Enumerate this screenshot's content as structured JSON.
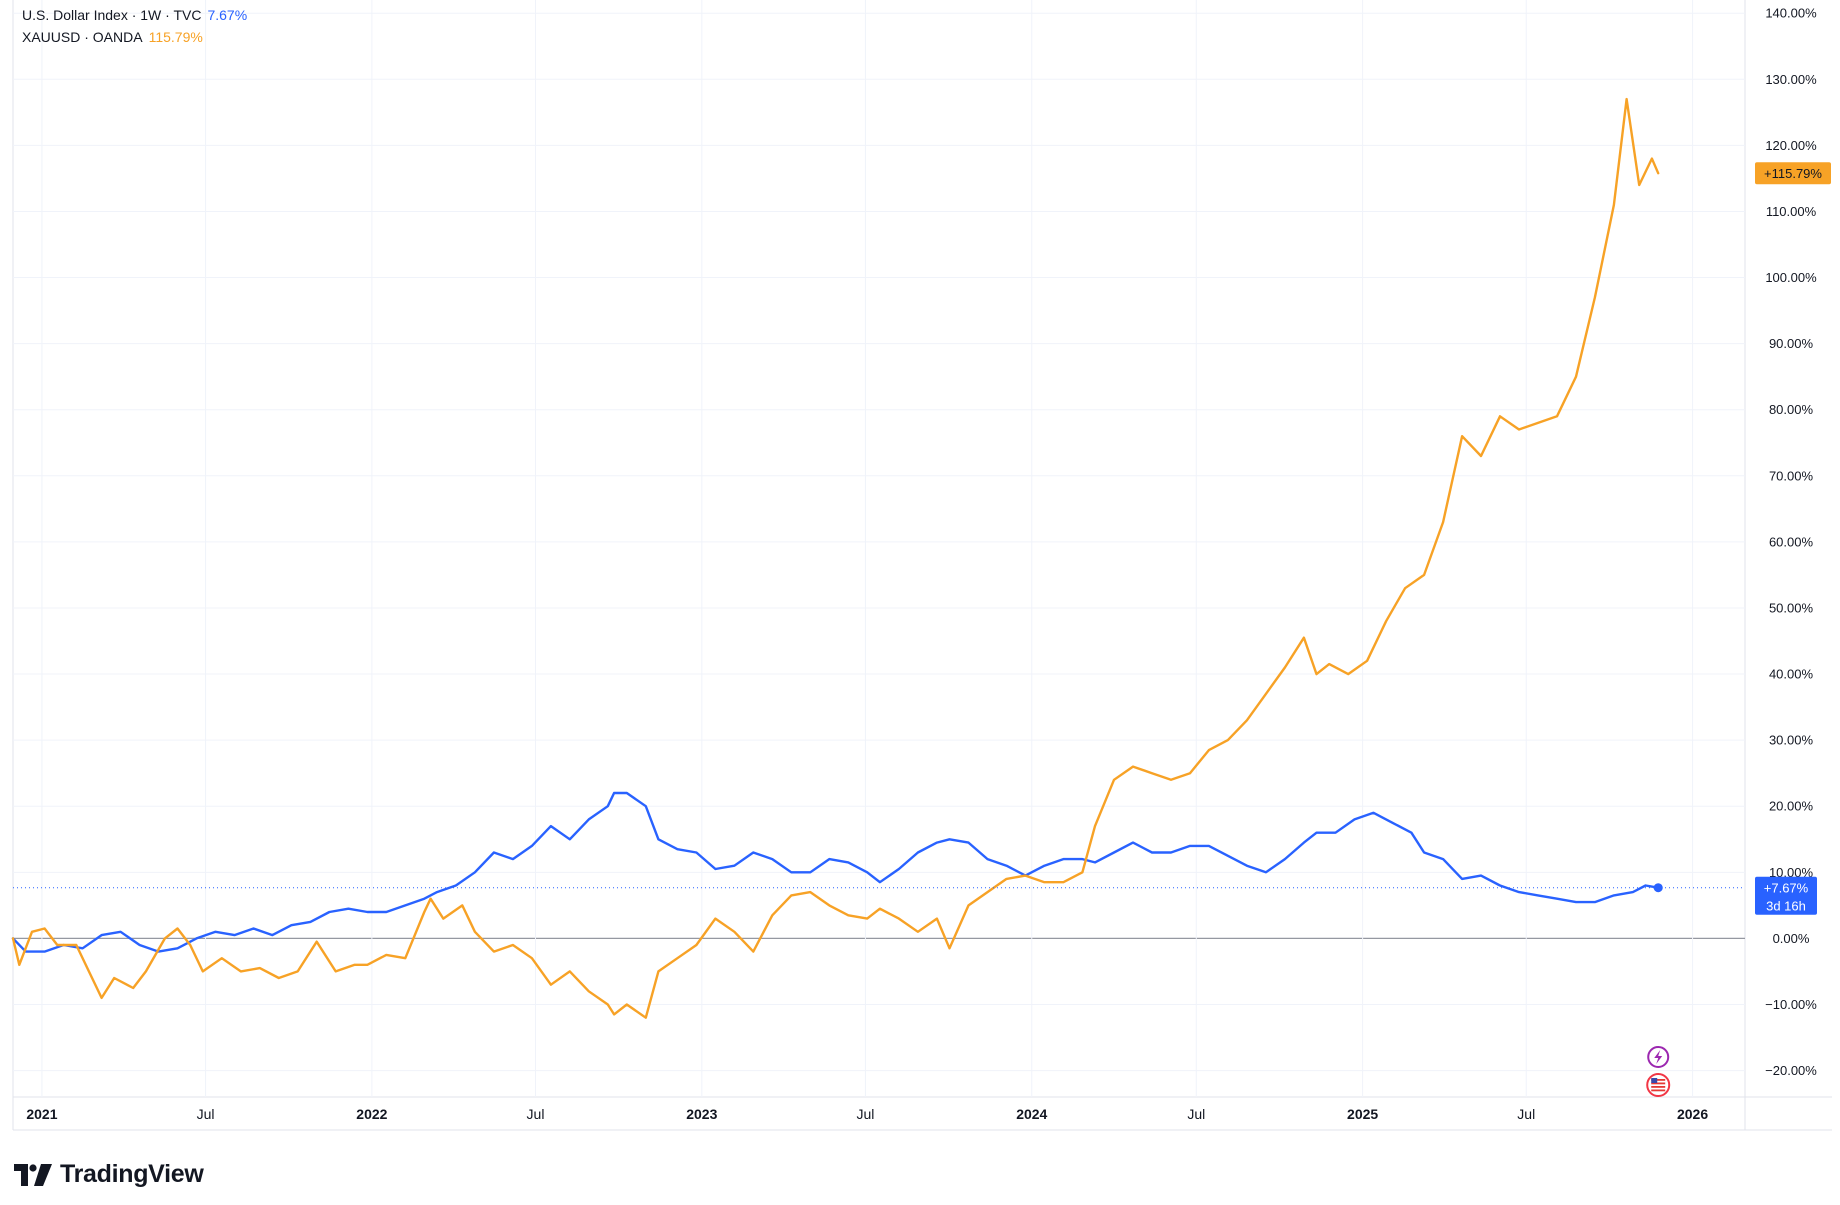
{
  "legend": {
    "dxy_name": "U.S. Dollar Index · 1W · TVC",
    "dxy_value": "7.67%",
    "gold_name": "XAUUSD · OANDA",
    "gold_value": "115.79%"
  },
  "price_labels": {
    "gold": "+115.79%",
    "dxy": "+7.67%",
    "dxy_countdown": "3d 16h"
  },
  "brand": {
    "name": "TradingView"
  },
  "colors": {
    "dxy": "#2962ff",
    "gold": "#f7a226",
    "dxy_text": "#2962ff",
    "gold_text": "#f7a226"
  },
  "chart_data": {
    "type": "line",
    "y_unit": "%",
    "ylim": [
      -24,
      142
    ],
    "y_ticks": [
      140,
      130,
      120,
      110,
      100,
      90,
      80,
      70,
      60,
      50,
      40,
      30,
      20,
      10,
      0,
      -10,
      -20
    ],
    "y_tick_labels": [
      "140.00%",
      "130.00%",
      "120.00%",
      "110.00%",
      "100.00%",
      "90.00%",
      "80.00%",
      "70.00%",
      "60.00%",
      "50.00%",
      "40.00%",
      "30.00%",
      "20.00%",
      "10.00%",
      "0.00%",
      "−10.00%",
      "−20.00%"
    ],
    "xlim": [
      "2020-11-30",
      "2026-02-28"
    ],
    "x_ticks": [
      {
        "date": "2021-01-01",
        "label": "2021",
        "bold": true
      },
      {
        "date": "2021-07-01",
        "label": "Jul",
        "bold": false
      },
      {
        "date": "2022-01-01",
        "label": "2022",
        "bold": true
      },
      {
        "date": "2022-07-01",
        "label": "Jul",
        "bold": false
      },
      {
        "date": "2023-01-01",
        "label": "2023",
        "bold": true
      },
      {
        "date": "2023-07-01",
        "label": "Jul",
        "bold": false
      },
      {
        "date": "2024-01-01",
        "label": "2024",
        "bold": true
      },
      {
        "date": "2024-07-01",
        "label": "Jul",
        "bold": false
      },
      {
        "date": "2025-01-01",
        "label": "2025",
        "bold": true
      },
      {
        "date": "2025-07-01",
        "label": "Jul",
        "bold": false
      },
      {
        "date": "2026-01-01",
        "label": "2026",
        "bold": true
      }
    ],
    "series": [
      {
        "name": "U.S. Dollar Index · 1W · TVC",
        "color": "#2962ff",
        "last_value": 7.67,
        "points": [
          [
            "2020-11-30",
            0
          ],
          [
            "2020-12-14",
            -2
          ],
          [
            "2021-01-04",
            -2
          ],
          [
            "2021-01-25",
            -1
          ],
          [
            "2021-02-15",
            -1.5
          ],
          [
            "2021-03-08",
            0.5
          ],
          [
            "2021-03-29",
            1
          ],
          [
            "2021-04-19",
            -1
          ],
          [
            "2021-05-10",
            -2
          ],
          [
            "2021-05-31",
            -1.5
          ],
          [
            "2021-06-21",
            0
          ],
          [
            "2021-07-12",
            1
          ],
          [
            "2021-08-02",
            0.5
          ],
          [
            "2021-08-23",
            1.5
          ],
          [
            "2021-09-13",
            0.5
          ],
          [
            "2021-10-04",
            2
          ],
          [
            "2021-10-25",
            2.5
          ],
          [
            "2021-11-15",
            4
          ],
          [
            "2021-12-06",
            4.5
          ],
          [
            "2021-12-27",
            4
          ],
          [
            "2022-01-17",
            4
          ],
          [
            "2022-02-07",
            5
          ],
          [
            "2022-02-28",
            6
          ],
          [
            "2022-03-14",
            7
          ],
          [
            "2022-04-04",
            8
          ],
          [
            "2022-04-25",
            10
          ],
          [
            "2022-05-16",
            13
          ],
          [
            "2022-06-06",
            12
          ],
          [
            "2022-06-27",
            14
          ],
          [
            "2022-07-18",
            17
          ],
          [
            "2022-08-08",
            15
          ],
          [
            "2022-08-29",
            18
          ],
          [
            "2022-09-19",
            20
          ],
          [
            "2022-09-26",
            22
          ],
          [
            "2022-10-10",
            22
          ],
          [
            "2022-10-31",
            20
          ],
          [
            "2022-11-14",
            15
          ],
          [
            "2022-12-05",
            13.5
          ],
          [
            "2022-12-26",
            13
          ],
          [
            "2023-01-16",
            10.5
          ],
          [
            "2023-02-06",
            11
          ],
          [
            "2023-02-27",
            13
          ],
          [
            "2023-03-20",
            12
          ],
          [
            "2023-04-10",
            10
          ],
          [
            "2023-05-01",
            10
          ],
          [
            "2023-05-22",
            12
          ],
          [
            "2023-06-12",
            11.5
          ],
          [
            "2023-07-03",
            10
          ],
          [
            "2023-07-17",
            8.5
          ],
          [
            "2023-08-07",
            10.5
          ],
          [
            "2023-08-28",
            13
          ],
          [
            "2023-09-18",
            14.5
          ],
          [
            "2023-10-02",
            15
          ],
          [
            "2023-10-23",
            14.5
          ],
          [
            "2023-11-13",
            12
          ],
          [
            "2023-12-04",
            11
          ],
          [
            "2023-12-25",
            9.5
          ],
          [
            "2024-01-15",
            11
          ],
          [
            "2024-02-05",
            12
          ],
          [
            "2024-02-26",
            12
          ],
          [
            "2024-03-11",
            11.5
          ],
          [
            "2024-04-01",
            13
          ],
          [
            "2024-04-22",
            14.5
          ],
          [
            "2024-05-13",
            13
          ],
          [
            "2024-06-03",
            13
          ],
          [
            "2024-06-24",
            14
          ],
          [
            "2024-07-15",
            14
          ],
          [
            "2024-08-05",
            12.5
          ],
          [
            "2024-08-26",
            11
          ],
          [
            "2024-09-16",
            10
          ],
          [
            "2024-10-07",
            12
          ],
          [
            "2024-10-28",
            14.5
          ],
          [
            "2024-11-11",
            16
          ],
          [
            "2024-12-02",
            16
          ],
          [
            "2024-12-23",
            18
          ],
          [
            "2025-01-13",
            19
          ],
          [
            "2025-02-03",
            17.5
          ],
          [
            "2025-02-24",
            16
          ],
          [
            "2025-03-10",
            13
          ],
          [
            "2025-03-31",
            12
          ],
          [
            "2025-04-21",
            9
          ],
          [
            "2025-05-12",
            9.5
          ],
          [
            "2025-06-02",
            8
          ],
          [
            "2025-06-23",
            7
          ],
          [
            "2025-07-14",
            6.5
          ],
          [
            "2025-08-04",
            6
          ],
          [
            "2025-08-25",
            5.5
          ],
          [
            "2025-09-15",
            5.5
          ],
          [
            "2025-10-06",
            6.5
          ],
          [
            "2025-10-27",
            7
          ],
          [
            "2025-11-10",
            8
          ],
          [
            "2025-11-24",
            7.67
          ]
        ]
      },
      {
        "name": "XAUUSD · OANDA",
        "color": "#f7a226",
        "last_value": 115.79,
        "points": [
          [
            "2020-11-30",
            0
          ],
          [
            "2020-12-07",
            -4
          ],
          [
            "2020-12-21",
            1
          ],
          [
            "2021-01-04",
            1.5
          ],
          [
            "2021-01-18",
            -1
          ],
          [
            "2021-02-08",
            -1
          ],
          [
            "2021-02-22",
            -5
          ],
          [
            "2021-03-08",
            -9
          ],
          [
            "2021-03-22",
            -6
          ],
          [
            "2021-04-12",
            -7.5
          ],
          [
            "2021-04-26",
            -5
          ],
          [
            "2021-05-17",
            0
          ],
          [
            "2021-05-31",
            1.5
          ],
          [
            "2021-06-14",
            -1
          ],
          [
            "2021-06-28",
            -5
          ],
          [
            "2021-07-19",
            -3
          ],
          [
            "2021-08-09",
            -5
          ],
          [
            "2021-08-30",
            -4.5
          ],
          [
            "2021-09-20",
            -6
          ],
          [
            "2021-10-11",
            -5
          ],
          [
            "2021-11-01",
            -0.5
          ],
          [
            "2021-11-22",
            -5
          ],
          [
            "2021-12-13",
            -4
          ],
          [
            "2021-12-27",
            -4
          ],
          [
            "2022-01-17",
            -2.5
          ],
          [
            "2022-02-07",
            -3
          ],
          [
            "2022-02-28",
            4
          ],
          [
            "2022-03-07",
            6
          ],
          [
            "2022-03-21",
            3
          ],
          [
            "2022-04-11",
            5
          ],
          [
            "2022-04-25",
            1
          ],
          [
            "2022-05-16",
            -2
          ],
          [
            "2022-06-06",
            -1
          ],
          [
            "2022-06-27",
            -3
          ],
          [
            "2022-07-18",
            -7
          ],
          [
            "2022-08-08",
            -5
          ],
          [
            "2022-08-29",
            -8
          ],
          [
            "2022-09-19",
            -10
          ],
          [
            "2022-09-26",
            -11.5
          ],
          [
            "2022-10-10",
            -10
          ],
          [
            "2022-10-31",
            -12
          ],
          [
            "2022-11-14",
            -5
          ],
          [
            "2022-12-05",
            -3
          ],
          [
            "2022-12-26",
            -1
          ],
          [
            "2023-01-16",
            3
          ],
          [
            "2023-02-06",
            1
          ],
          [
            "2023-02-27",
            -2
          ],
          [
            "2023-03-20",
            3.5
          ],
          [
            "2023-04-10",
            6.5
          ],
          [
            "2023-05-01",
            7
          ],
          [
            "2023-05-22",
            5
          ],
          [
            "2023-06-12",
            3.5
          ],
          [
            "2023-07-03",
            3
          ],
          [
            "2023-07-17",
            4.5
          ],
          [
            "2023-08-07",
            3
          ],
          [
            "2023-08-28",
            1
          ],
          [
            "2023-09-18",
            3
          ],
          [
            "2023-10-02",
            -1.5
          ],
          [
            "2023-10-23",
            5
          ],
          [
            "2023-11-13",
            7
          ],
          [
            "2023-12-04",
            9
          ],
          [
            "2023-12-25",
            9.5
          ],
          [
            "2024-01-15",
            8.5
          ],
          [
            "2024-02-05",
            8.5
          ],
          [
            "2024-02-26",
            10
          ],
          [
            "2024-03-11",
            17
          ],
          [
            "2024-04-01",
            24
          ],
          [
            "2024-04-22",
            26
          ],
          [
            "2024-05-13",
            25
          ],
          [
            "2024-06-03",
            24
          ],
          [
            "2024-06-24",
            25
          ],
          [
            "2024-07-15",
            28.5
          ],
          [
            "2024-08-05",
            30
          ],
          [
            "2024-08-26",
            33
          ],
          [
            "2024-09-16",
            37
          ],
          [
            "2024-10-07",
            41
          ],
          [
            "2024-10-28",
            45.5
          ],
          [
            "2024-11-11",
            40
          ],
          [
            "2024-11-25",
            41.5
          ],
          [
            "2024-12-16",
            40
          ],
          [
            "2025-01-06",
            42
          ],
          [
            "2025-01-27",
            48
          ],
          [
            "2025-02-17",
            53
          ],
          [
            "2025-03-10",
            55
          ],
          [
            "2025-03-31",
            63
          ],
          [
            "2025-04-21",
            76
          ],
          [
            "2025-05-12",
            73
          ],
          [
            "2025-06-02",
            79
          ],
          [
            "2025-06-23",
            77
          ],
          [
            "2025-07-14",
            78
          ],
          [
            "2025-08-04",
            79
          ],
          [
            "2025-08-25",
            85
          ],
          [
            "2025-09-15",
            97
          ],
          [
            "2025-10-06",
            111
          ],
          [
            "2025-10-20",
            127
          ],
          [
            "2025-11-03",
            114
          ],
          [
            "2025-11-17",
            118
          ],
          [
            "2025-11-24",
            115.79
          ]
        ]
      }
    ]
  }
}
